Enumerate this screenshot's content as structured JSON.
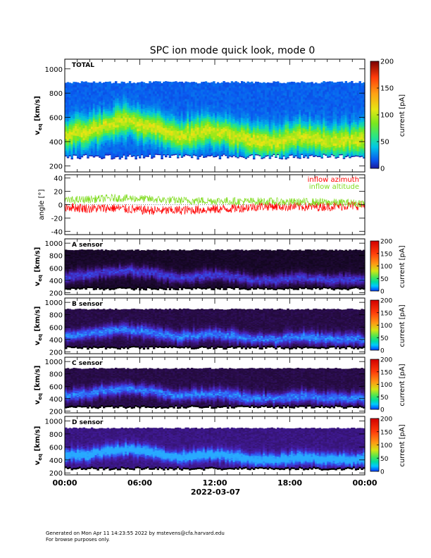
{
  "chart_data": {
    "type": "heatmap",
    "title": "SPC ion mode quick look, mode 0",
    "xlabel": "2022-03-07",
    "x_ticks": [
      "00:00",
      "06:00",
      "12:00",
      "18:00",
      "00:00"
    ],
    "x_range_hours": [
      0,
      24
    ],
    "panels": [
      {
        "id": "total",
        "type": "heatmap",
        "label": "TOTAL",
        "ylabel_main": "v",
        "ylabel_sub": "eq",
        "ylabel_unit": "[km/s]",
        "ylim": [
          150,
          1080
        ],
        "y_ticks": [
          200,
          400,
          600,
          800,
          1000
        ],
        "colormap": "rainbow",
        "colorbar": {
          "label": "current [pA]",
          "range": [
            0,
            200
          ],
          "ticks": [
            0,
            50,
            100,
            150,
            200
          ]
        },
        "data_top_kms": 880,
        "peak_velocity_kms_hourly": [
          440,
          470,
          480,
          520,
          540,
          560,
          530,
          520,
          470,
          430,
          450,
          470,
          480,
          460,
          430,
          400,
          400,
          390,
          420,
          440,
          420,
          400,
          410,
          400,
          400
        ]
      },
      {
        "id": "angles",
        "type": "line",
        "ylabel": "angle [°]",
        "ylim": [
          -45,
          45
        ],
        "y_ticks": [
          -40,
          -20,
          0,
          20,
          40
        ],
        "series": [
          {
            "name": "inflow azimuth",
            "color": "#ff0000",
            "hours": [
              0,
              2,
              4,
              6,
              8,
              10,
              12,
              14,
              16,
              18,
              20,
              22,
              24
            ],
            "values": [
              -3,
              -6,
              -5,
              -8,
              -9,
              -8,
              -7,
              -5,
              -2,
              -3,
              -3,
              -2,
              -1
            ]
          },
          {
            "name": "inflow altitude",
            "color": "#80dc20",
            "hours": [
              0,
              2,
              4,
              6,
              8,
              10,
              12,
              14,
              16,
              18,
              20,
              22,
              24
            ],
            "values": [
              6,
              8,
              10,
              9,
              7,
              6,
              6,
              5,
              5,
              4,
              4,
              3,
              2
            ]
          }
        ]
      },
      {
        "id": "sensor-a",
        "type": "heatmap",
        "label": "A sensor",
        "ylabel_main": "v",
        "ylabel_sub": "eq",
        "ylabel_unit": "[km/s]",
        "ylim": [
          170,
          1070
        ],
        "y_ticks": [
          200,
          400,
          600,
          800,
          1000
        ],
        "colormap": "dark",
        "colorbar": {
          "label": "current [pA]",
          "range": [
            0,
            200
          ],
          "ticks": [
            0,
            50,
            100,
            150,
            200
          ]
        }
      },
      {
        "id": "sensor-b",
        "type": "heatmap",
        "label": "B sensor",
        "ylabel_main": "v",
        "ylabel_sub": "eq",
        "ylabel_unit": "[km/s]",
        "ylim": [
          170,
          1070
        ],
        "y_ticks": [
          200,
          400,
          600,
          800,
          1000
        ],
        "colormap": "dark",
        "colorbar": {
          "label": "current [pA]",
          "range": [
            0,
            200
          ],
          "ticks": [
            0,
            50,
            100,
            150,
            200
          ]
        }
      },
      {
        "id": "sensor-c",
        "type": "heatmap",
        "label": "C sensor",
        "ylabel_main": "v",
        "ylabel_sub": "eq",
        "ylabel_unit": "[km/s]",
        "ylim": [
          170,
          1070
        ],
        "y_ticks": [
          200,
          400,
          600,
          800,
          1000
        ],
        "colormap": "dark",
        "colorbar": {
          "label": "current [pA]",
          "range": [
            0,
            200
          ],
          "ticks": [
            0,
            50,
            100,
            150,
            200
          ]
        }
      },
      {
        "id": "sensor-d",
        "type": "heatmap",
        "label": "D sensor",
        "ylabel_main": "v",
        "ylabel_sub": "eq",
        "ylabel_unit": "[km/s]",
        "ylim": [
          170,
          1070
        ],
        "y_ticks": [
          200,
          400,
          600,
          800,
          1000
        ],
        "colormap": "dark",
        "colorbar": {
          "label": "current [pA]",
          "range": [
            0,
            200
          ],
          "ticks": [
            0,
            50,
            100,
            150,
            200
          ]
        }
      }
    ]
  },
  "footer": {
    "line1": "Generated on Mon Apr 11 14:23:55 2022 by mstevens@cfa.harvard.edu",
    "line2": "For browse purposes only."
  }
}
